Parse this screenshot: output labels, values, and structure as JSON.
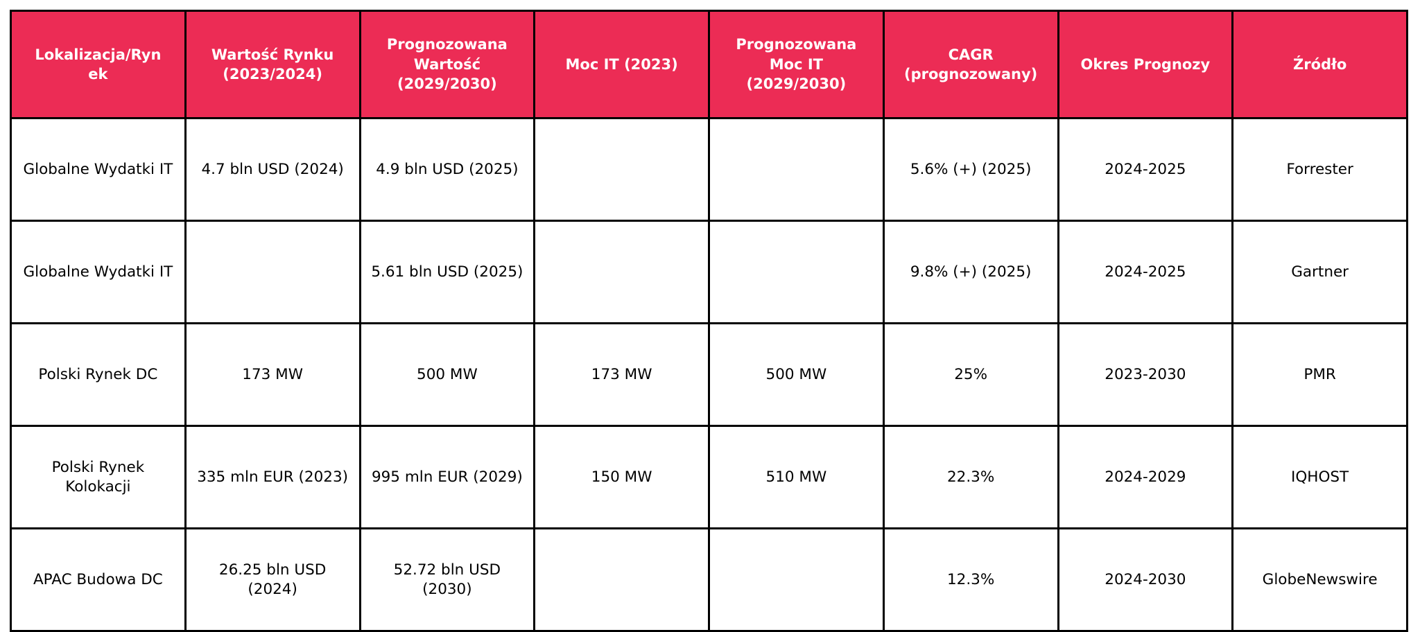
{
  "theme": {
    "header_background": "#EC2C55",
    "header_text_color": "#FFFFFF",
    "body_text_color": "#000000",
    "border_color": "#000000",
    "page_background": "#FFFFFF"
  },
  "table": {
    "headers": [
      "Lokalizacja/Ryn\nek",
      "Wartość Rynku\n(2023/2024)",
      "Prognozowana\nWartość\n(2029/2030)",
      "Moc IT (2023)",
      "Prognozowana\nMoc IT\n(2029/2030)",
      "CAGR\n(prognozowany)",
      "Okres Prognozy",
      "Źródło"
    ],
    "rows": [
      {
        "cells": [
          "Globalne Wydatki IT",
          "4.7 bln USD (2024)",
          "4.9 bln USD (2025)",
          "",
          "",
          "5.6% (+) (2025)",
          "2024-2025",
          "Forrester"
        ]
      },
      {
        "cells": [
          "Globalne Wydatki IT",
          "",
          "5.61 bln USD (2025)",
          "",
          "",
          "9.8% (+) (2025)",
          "2024-2025",
          "Gartner"
        ]
      },
      {
        "cells": [
          "Polski Rynek DC",
          "173 MW",
          "500 MW",
          "173 MW",
          "500 MW",
          "25%",
          "2023-2030",
          "PMR"
        ]
      },
      {
        "cells": [
          "Polski Rynek Kolokacji",
          "335 mln EUR (2023)",
          "995 mln EUR (2029)",
          "150 MW",
          "510 MW",
          "22.3%",
          "2024-2029",
          "IQHOST"
        ]
      },
      {
        "cells": [
          "APAC Budowa DC",
          "26.25 bln USD (2024)",
          "52.72 bln USD (2030)",
          "",
          "",
          "12.3%",
          "2024-2030",
          "GlobeNewswire"
        ]
      }
    ]
  },
  "chart_data": {
    "type": "table",
    "title": "",
    "columns": [
      "Lokalizacja/Rynek",
      "Wartość Rynku (2023/2024)",
      "Prognozowana Wartość (2029/2030)",
      "Moc IT (2023)",
      "Prognozowana Moc IT (2029/2030)",
      "CAGR (prognozowany)",
      "Okres Prognozy",
      "Źródło"
    ],
    "rows": [
      [
        "Globalne Wydatki IT",
        "4.7 bln USD (2024)",
        "4.9 bln USD (2025)",
        "",
        "",
        "5.6% (+) (2025)",
        "2024-2025",
        "Forrester"
      ],
      [
        "Globalne Wydatki IT",
        "",
        "5.61 bln USD (2025)",
        "",
        "",
        "9.8% (+) (2025)",
        "2024-2025",
        "Gartner"
      ],
      [
        "Polski Rynek DC",
        "173 MW",
        "500 MW",
        "173 MW",
        "500 MW",
        "25%",
        "2023-2030",
        "PMR"
      ],
      [
        "Polski Rynek Kolokacji",
        "335 mln EUR (2023)",
        "995 mln EUR (2029)",
        "150 MW",
        "510 MW",
        "22.3%",
        "2024-2029",
        "IQHOST"
      ],
      [
        "APAC Budowa DC",
        "26.25 bln USD (2024)",
        "52.72 bln USD (2030)",
        "",
        "",
        "12.3%",
        "2024-2030",
        "GlobeNewswire"
      ]
    ]
  }
}
